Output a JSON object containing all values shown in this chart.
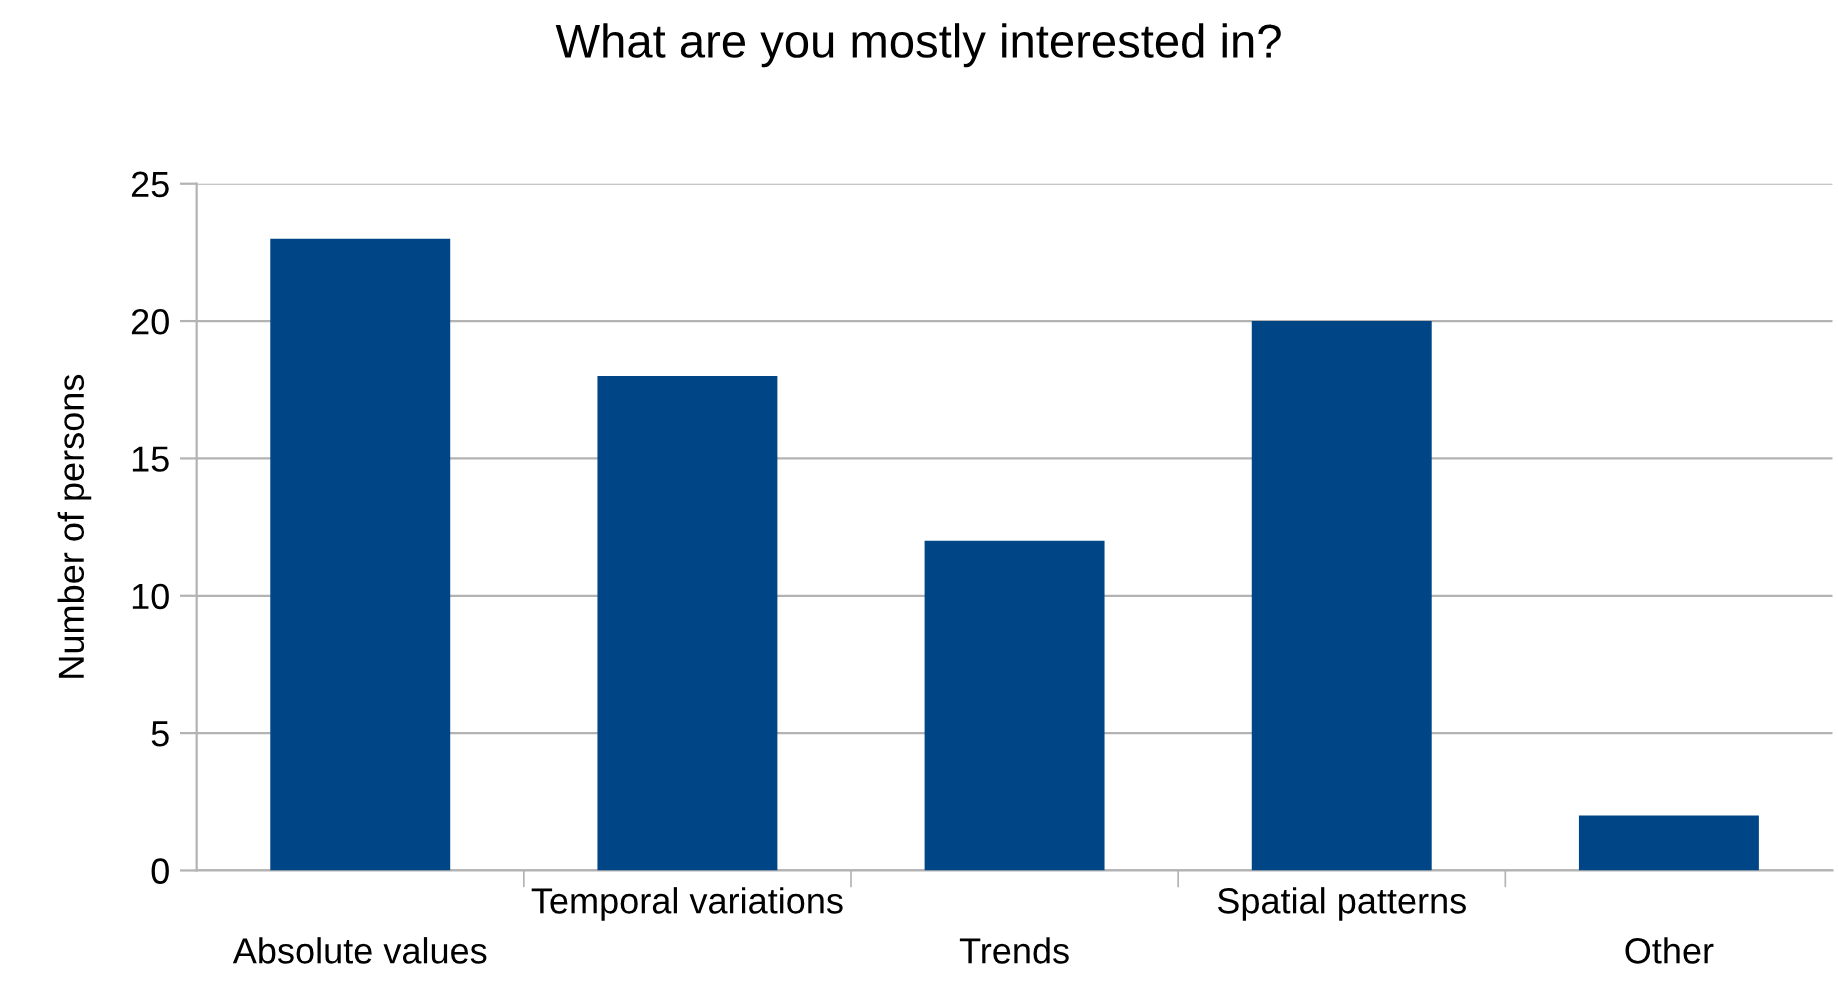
{
  "chart_data": {
    "type": "bar",
    "title": "What are you mostly interested in?",
    "ylabel": "Number of persons",
    "categories": [
      "Absolute values",
      "Temporal variations",
      "Trends",
      "Spatial patterns",
      "Other"
    ],
    "values": [
      23,
      18,
      12,
      20,
      2
    ],
    "color": "#004586",
    "ylim": [
      0,
      25
    ],
    "yticks": [
      0,
      5,
      10,
      15,
      20,
      25
    ],
    "grid": "y"
  }
}
